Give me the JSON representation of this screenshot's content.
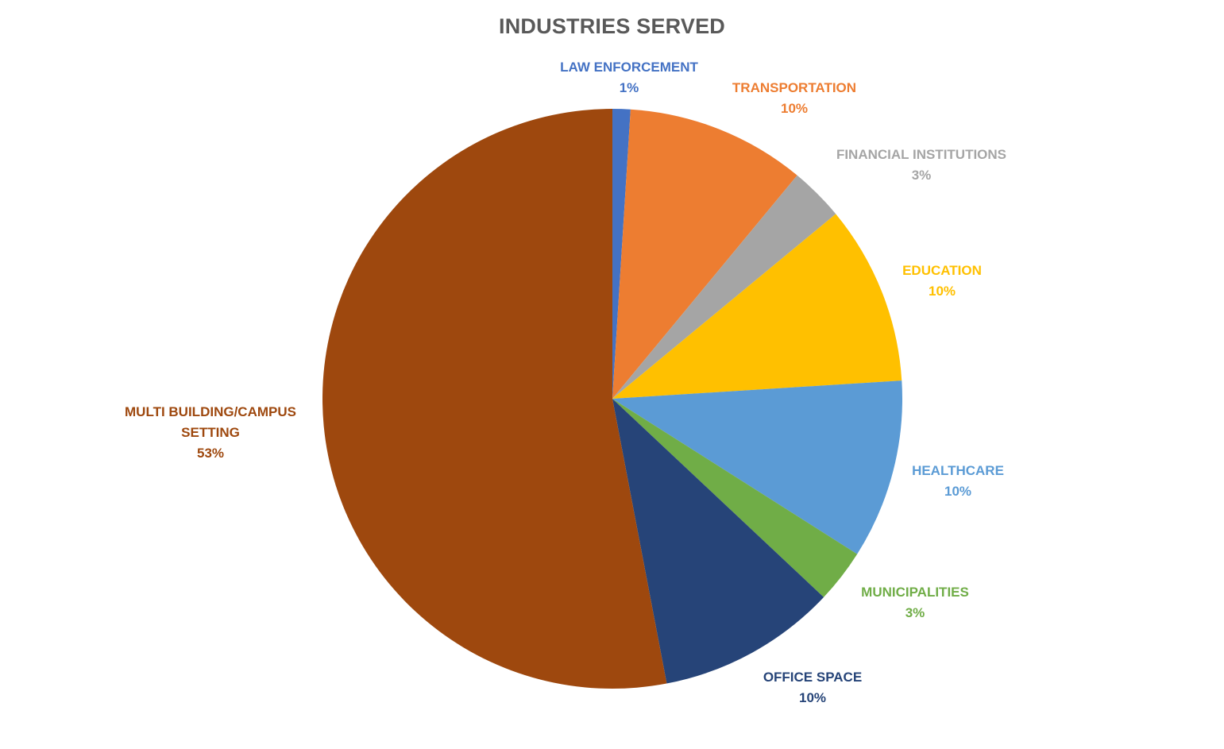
{
  "chart_data": {
    "type": "pie",
    "title": "INDUSTRIES SERVED",
    "start_angle_deg": 0,
    "direction": "clockwise",
    "legend": "none",
    "slices": [
      {
        "label": "LAW ENFORCEMENT",
        "pct_label": "1%",
        "value": 1.0,
        "color": "#4472C4"
      },
      {
        "label": "TRANSPORTATION",
        "pct_label": "10%",
        "value": 10.0,
        "color": "#ED7D31"
      },
      {
        "label": "FINANCIAL INSTITUTIONS",
        "pct_label": "3%",
        "value": 3.0,
        "color": "#A5A5A5"
      },
      {
        "label": "EDUCATION",
        "pct_label": "10%",
        "value": 10.0,
        "color": "#FFC000"
      },
      {
        "label": "HEALTHCARE",
        "pct_label": "10%",
        "value": 10.0,
        "color": "#5B9BD5"
      },
      {
        "label": "MUNICIPALITIES",
        "pct_label": "3%",
        "value": 3.0,
        "color": "#70AD47"
      },
      {
        "label": "OFFICE SPACE",
        "pct_label": "10%",
        "value": 10.0,
        "color": "#264478"
      },
      {
        "label": "MULTI BUILDING/CAMPUS SETTING",
        "label_lines": [
          "MULTI BUILDING/CAMPUS",
          "SETTING"
        ],
        "pct_label": "53%",
        "value": 53.0,
        "color": "#9E480E"
      }
    ]
  }
}
